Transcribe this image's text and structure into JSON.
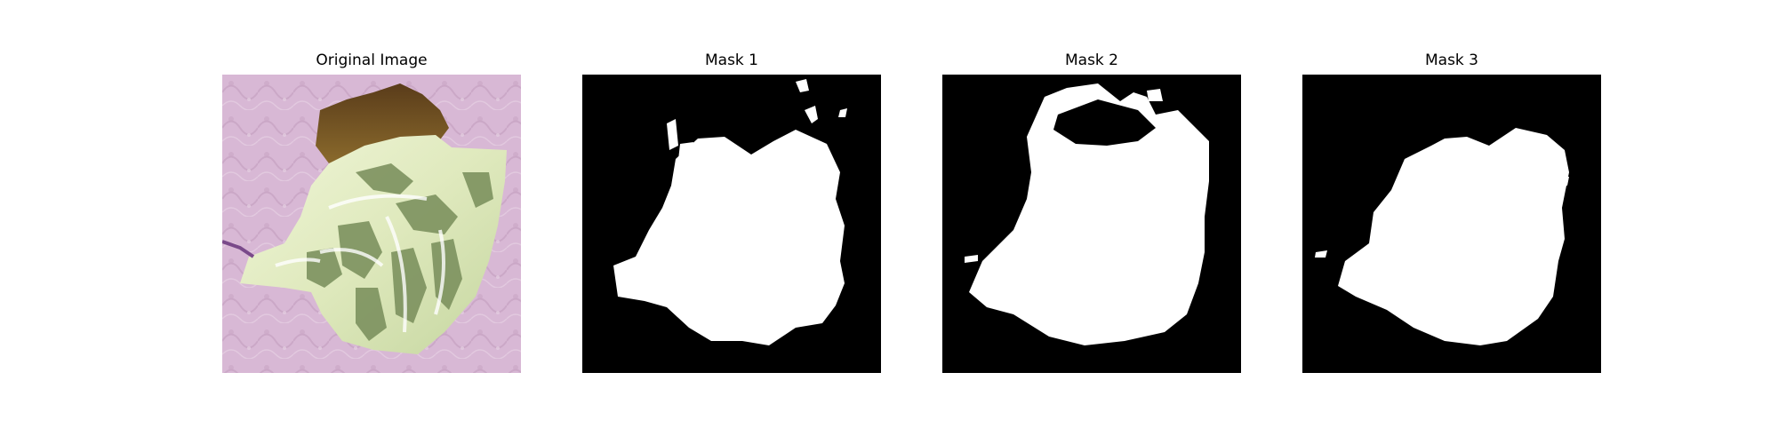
{
  "figure": {
    "panels": [
      {
        "title": "Original Image"
      },
      {
        "title": "Mask 1"
      },
      {
        "title": "Mask 2"
      },
      {
        "title": "Mask 3"
      }
    ]
  },
  "colors": {
    "background_paper": "#d9b9d6",
    "leaf_light": "#e8f0c8",
    "leaf_dark": "#74895a",
    "leaf_brown": "#6b4a1e",
    "mask_background": "#000000",
    "mask_foreground": "#ffffff"
  }
}
